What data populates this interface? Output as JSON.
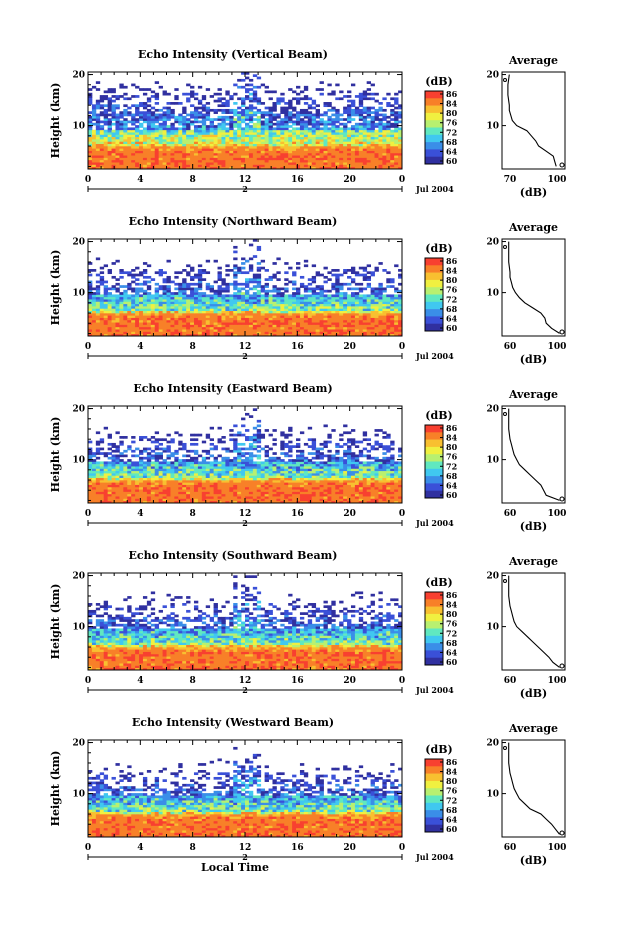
{
  "colors": {
    "palette": [
      "#3030a0",
      "#3a50d8",
      "#3a8ee8",
      "#40c8f0",
      "#60e8c0",
      "#b8f070",
      "#f0f040",
      "#f8c030",
      "#f88028",
      "#f84030"
    ]
  },
  "common": {
    "month_label": "Jul 2004",
    "day_label": "2",
    "colorbar_unit": "(dB)",
    "colorbar_ticks": [
      "86",
      "84",
      "80",
      "76",
      "72",
      "68",
      "64",
      "60"
    ],
    "height_ticks": [
      "20",
      "10"
    ],
    "avg_title": "Average",
    "avg_unit": "(dB)",
    "xlabel": "Local Time",
    "ylabel": "Height (km)"
  },
  "chart_data": [
    {
      "type": "heatmap",
      "title": "Echo Intensity (Vertical Beam)",
      "xlabel": "",
      "ylabel": "Height (km)",
      "x_ticks": [
        "0",
        "4",
        "8",
        "12",
        "16",
        "20",
        "0"
      ],
      "xlim": [
        0,
        24
      ],
      "ylim": [
        1.5,
        20.5
      ],
      "colorbar": {
        "label": "(dB)",
        "ticks": [
          86,
          84,
          80,
          76,
          72,
          68,
          64,
          60
        ]
      },
      "profile": {
        "title": "Average",
        "xlabel": "(dB)",
        "x_ticks": [
          "70",
          "100"
        ],
        "xlim": [
          63,
          106
        ],
        "heights": [
          2,
          3,
          4,
          5,
          6,
          7,
          8,
          9,
          10,
          11,
          12,
          13,
          14,
          16,
          18,
          20
        ],
        "values": [
          100,
          99,
          98,
          93,
          88,
          86,
          83,
          80,
          73,
          70,
          69,
          68,
          68,
          67,
          67,
          68
        ]
      }
    },
    {
      "type": "heatmap",
      "title": "Echo Intensity (Northward Beam)",
      "xlabel": "",
      "ylabel": "Height (km)",
      "x_ticks": [
        "0",
        "4",
        "8",
        "12",
        "16",
        "20",
        "0"
      ],
      "xlim": [
        0,
        24
      ],
      "ylim": [
        1.5,
        20.5
      ],
      "colorbar": {
        "label": "(dB)",
        "ticks": [
          86,
          84,
          80,
          76,
          72,
          68,
          64,
          60
        ]
      },
      "profile": {
        "title": "Average",
        "xlabel": "(dB)",
        "x_ticks": [
          "60",
          "100"
        ],
        "xlim": [
          55,
          102
        ],
        "heights": [
          2,
          3,
          4,
          5,
          6,
          7,
          8,
          9,
          10,
          11,
          12,
          13,
          14,
          16,
          18,
          20
        ],
        "values": [
          98,
          92,
          88,
          87,
          84,
          78,
          72,
          68,
          65,
          63,
          62,
          61,
          61,
          60,
          60,
          60
        ]
      }
    },
    {
      "type": "heatmap",
      "title": "Echo Intensity (Eastward Beam)",
      "xlabel": "",
      "ylabel": "Height (km)",
      "x_ticks": [
        "0",
        "4",
        "8",
        "12",
        "16",
        "20",
        "0"
      ],
      "xlim": [
        0,
        24
      ],
      "ylim": [
        1.5,
        20.5
      ],
      "colorbar": {
        "label": "(dB)",
        "ticks": [
          86,
          84,
          80,
          76,
          72,
          68,
          64,
          60
        ]
      },
      "profile": {
        "title": "Average",
        "xlabel": "(dB)",
        "x_ticks": [
          "60",
          "100"
        ],
        "xlim": [
          55,
          102
        ],
        "heights": [
          2,
          3,
          4,
          5,
          6,
          7,
          8,
          9,
          10,
          11,
          12,
          13,
          14,
          16,
          18,
          20
        ],
        "values": [
          98,
          88,
          86,
          84,
          80,
          76,
          72,
          68,
          66,
          64,
          63,
          62,
          61,
          60,
          60,
          60
        ]
      }
    },
    {
      "type": "heatmap",
      "title": "Echo Intensity (Southward Beam)",
      "xlabel": "",
      "ylabel": "Height (km)",
      "x_ticks": [
        "0",
        "4",
        "8",
        "12",
        "16",
        "20",
        "0"
      ],
      "xlim": [
        0,
        24
      ],
      "ylim": [
        1.5,
        20.5
      ],
      "colorbar": {
        "label": "(dB)",
        "ticks": [
          86,
          84,
          80,
          76,
          72,
          68,
          64,
          60
        ]
      },
      "profile": {
        "title": "Average",
        "xlabel": "(dB)",
        "x_ticks": [
          "60",
          "100"
        ],
        "xlim": [
          55,
          102
        ],
        "heights": [
          2,
          3,
          4,
          5,
          6,
          7,
          8,
          9,
          10,
          11,
          12,
          13,
          14,
          16,
          18,
          20
        ],
        "values": [
          98,
          93,
          90,
          86,
          82,
          78,
          74,
          70,
          66,
          64,
          63,
          62,
          61,
          60,
          60,
          60
        ]
      }
    },
    {
      "type": "heatmap",
      "title": "Echo Intensity (Westward Beam)",
      "xlabel": "Local Time",
      "ylabel": "Height (km)",
      "x_ticks": [
        "0",
        "4",
        "8",
        "12",
        "16",
        "20",
        "0"
      ],
      "xlim": [
        0,
        24
      ],
      "ylim": [
        1.5,
        20.5
      ],
      "colorbar": {
        "label": "(dB)",
        "ticks": [
          86,
          84,
          80,
          76,
          72,
          68,
          64,
          60
        ]
      },
      "profile": {
        "title": "Average",
        "xlabel": "(dB)",
        "x_ticks": [
          "60",
          "100"
        ],
        "xlim": [
          55,
          102
        ],
        "heights": [
          2,
          3,
          4,
          5,
          6,
          7,
          8,
          9,
          10,
          11,
          12,
          13,
          14,
          16,
          18,
          20
        ],
        "values": [
          98,
          95,
          92,
          88,
          84,
          76,
          72,
          68,
          66,
          64,
          63,
          62,
          61,
          60,
          60,
          60
        ]
      }
    }
  ]
}
